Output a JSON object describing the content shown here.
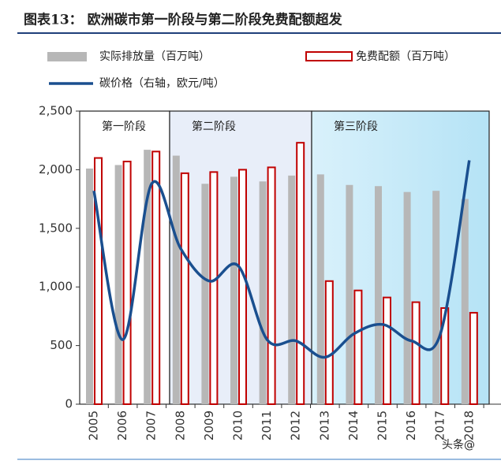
{
  "chart_data": {
    "type": "bar",
    "title": "图表13： 欧洲碳市第一阶段与第二阶段免费配额超发",
    "categories": [
      "2005",
      "2006",
      "2007",
      "2008",
      "2009",
      "2010",
      "2011",
      "2012",
      "2013",
      "2014",
      "2015",
      "2016",
      "2017",
      "2018"
    ],
    "series": [
      {
        "name": "实际排放量（百万吨）",
        "type": "bar",
        "color": "#b7b7b7",
        "values": [
          2010,
          2040,
          2170,
          2120,
          1880,
          1940,
          1900,
          1950,
          1960,
          1870,
          1860,
          1810,
          1820,
          1750
        ]
      },
      {
        "name": "免费配额（百万吨）",
        "type": "bar",
        "color": "#c00000",
        "values": [
          2100,
          2070,
          2155,
          1970,
          1980,
          2000,
          2020,
          2230,
          1050,
          970,
          910,
          870,
          820,
          780
        ]
      },
      {
        "name": "碳价格（右轴，欧元/吨）",
        "type": "line",
        "color": "#1a4f8f",
        "values": [
          1820,
          550,
          1880,
          1330,
          1050,
          1180,
          550,
          540,
          400,
          600,
          680,
          540,
          600,
          2080
        ]
      }
    ],
    "phases": [
      {
        "label": "第一阶段"
      },
      {
        "label": "第二阶段"
      },
      {
        "label": "第三阶段"
      }
    ],
    "ylim": [
      0,
      2500
    ],
    "yticks": [
      0,
      500,
      {
        "value": 1000,
        "label": "1,000"
      },
      {
        "value": 1500,
        "label": "1,500"
      },
      {
        "value": 2000,
        "label": "2,000"
      },
      {
        "value": 2500,
        "label": "2,500"
      }
    ],
    "watermark": "头条@"
  }
}
